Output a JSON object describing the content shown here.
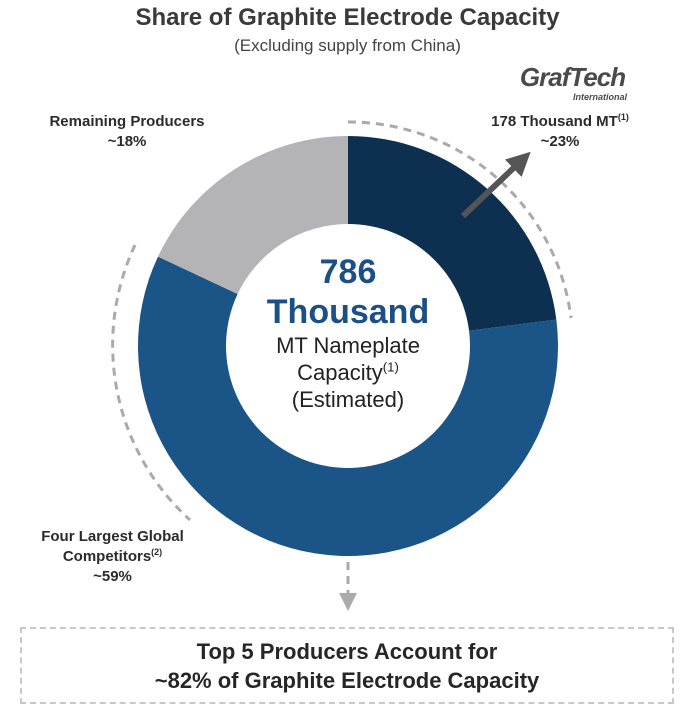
{
  "chart_data": {
    "type": "pie",
    "title": "Share of Graphite Electrode Capacity",
    "subtitle": "(Excluding supply from China)",
    "categories": [
      "178 Thousand MT",
      "Four Largest Global Competitors",
      "Remaining Producers"
    ],
    "label_notes": [
      "(1)",
      "(2)",
      null
    ],
    "values": [
      23,
      59,
      18
    ],
    "value_labels": [
      "~23%",
      "~59%",
      "~18%"
    ],
    "colors": [
      "#0e3050",
      "#1b5587",
      "#b4b4b7"
    ],
    "donut": true,
    "center": {
      "total": 786,
      "unit": "Thousand",
      "lines": [
        "MT Nameplate",
        "Capacity"
      ],
      "note": "(1)",
      "last_line": "(Estimated)"
    },
    "logo": {
      "name": "GrafTech",
      "sub": "International"
    },
    "footer": [
      "Top 5 Producers Account for",
      "~82% of Graphite Electrode Capacity"
    ]
  }
}
